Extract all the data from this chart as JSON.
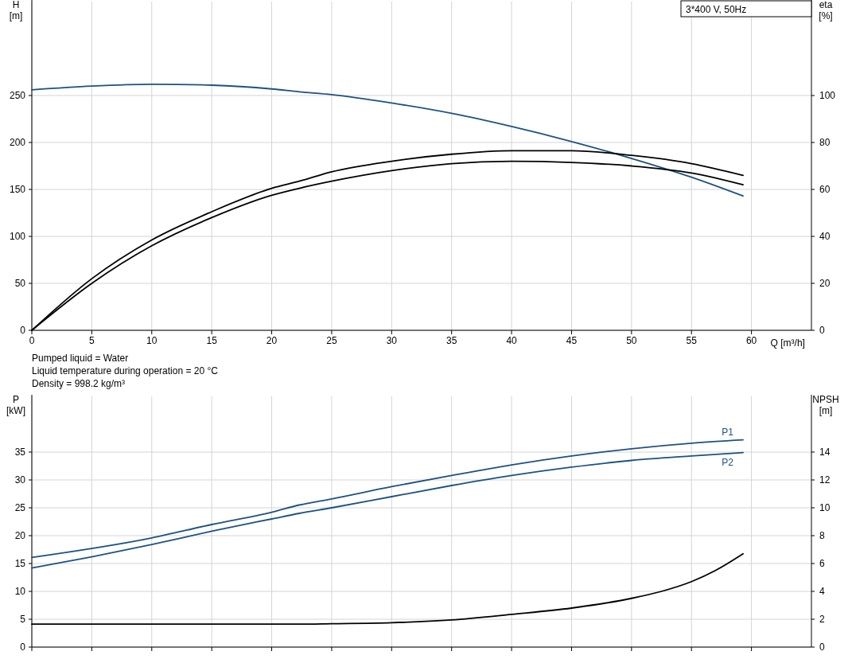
{
  "chart_data": [
    {
      "type": "line",
      "title": "3*400 V, 50Hz",
      "xlabel": "Q [m³/h]",
      "ylabel": "H [m]",
      "y2label": "eta [%]",
      "xlim": [
        0,
        65
      ],
      "xticks": [
        0,
        5,
        10,
        15,
        20,
        25,
        30,
        35,
        40,
        45,
        50,
        55,
        60
      ],
      "ylim": [
        0,
        350
      ],
      "yticks": [
        0,
        50,
        100,
        150,
        200,
        250
      ],
      "y2lim": [
        0,
        140
      ],
      "y2ticks": [
        0,
        20,
        40,
        60,
        80,
        100
      ],
      "grid": true,
      "marker": "none",
      "line_style": "solid",
      "series": [
        {
          "color": "#1b5283",
          "x": [
            0,
            5,
            10,
            15,
            20,
            22.3,
            25,
            30,
            35,
            40,
            45,
            50,
            55,
            59.3
          ],
          "values": [
            256,
            260,
            262,
            261,
            257,
            254,
            251,
            242,
            231,
            217,
            201,
            183,
            163,
            143
          ]
        },
        {
          "color": "#000000",
          "axis": "y2",
          "x": [
            0,
            5,
            10,
            15,
            20,
            22.3,
            25,
            30,
            35,
            40,
            45,
            50,
            55,
            59.3
          ],
          "values": [
            0,
            22,
            38.5,
            50.5,
            60.5,
            63.5,
            67.5,
            72,
            75,
            76.5,
            76.5,
            74.5,
            71,
            66
          ]
        },
        {
          "color": "#000000",
          "axis": "y2",
          "x": [
            0,
            5,
            10,
            15,
            20,
            22.3,
            25,
            30,
            35,
            40,
            45,
            50,
            55,
            59.3
          ],
          "values": [
            0,
            20,
            36,
            48,
            57.5,
            60.5,
            63.5,
            68,
            71,
            72,
            71.5,
            70,
            67,
            62
          ]
        }
      ],
      "annotations": [
        "Pumped liquid = Water",
        "Liquid temperature during operation = 20 °C",
        "Density = 998.2 kg/m³"
      ]
    },
    {
      "type": "line",
      "ylabel": "P [kW]",
      "y2label": "NPSH [m]",
      "xlim": [
        0,
        65
      ],
      "xticks": [
        0,
        5,
        10,
        15,
        20,
        25,
        30,
        35,
        40,
        45,
        50,
        55,
        60
      ],
      "ylim": [
        0,
        45
      ],
      "yticks": [
        0,
        5,
        10,
        15,
        20,
        25,
        30,
        35
      ],
      "y2lim": [
        0,
        18
      ],
      "y2ticks": [
        0,
        2,
        4,
        6,
        8,
        10,
        12,
        14
      ],
      "grid": true,
      "marker": "none",
      "line_style": "solid",
      "tick_labels": "y",
      "series": [
        {
          "name": "P1",
          "color": "#1b5283",
          "x": [
            0,
            10,
            15,
            20,
            22.3,
            25,
            30,
            35,
            40,
            45,
            50,
            55,
            59.3
          ],
          "values": [
            16.1,
            19.6,
            22,
            24.2,
            25.5,
            26.6,
            28.8,
            30.8,
            32.7,
            34.3,
            35.6,
            36.6,
            37.2
          ]
        },
        {
          "name": "P2",
          "color": "#1b5283",
          "x": [
            0,
            5,
            10,
            15,
            20,
            22.3,
            25,
            30,
            35,
            40,
            45,
            50,
            55,
            59.3
          ],
          "values": [
            14.2,
            16.2,
            18.4,
            20.8,
            23,
            24,
            25,
            27,
            29,
            30.8,
            32.3,
            33.5,
            34.3,
            34.9
          ]
        },
        {
          "color": "#000000",
          "axis": "y2",
          "x": [
            0,
            22.3,
            25,
            30,
            35,
            40,
            45,
            50,
            52.5,
            55,
            57,
            59.3
          ],
          "values": [
            1.65,
            1.65,
            1.68,
            1.75,
            1.95,
            2.35,
            2.8,
            3.5,
            4,
            4.7,
            5.5,
            6.7
          ]
        }
      ]
    }
  ]
}
